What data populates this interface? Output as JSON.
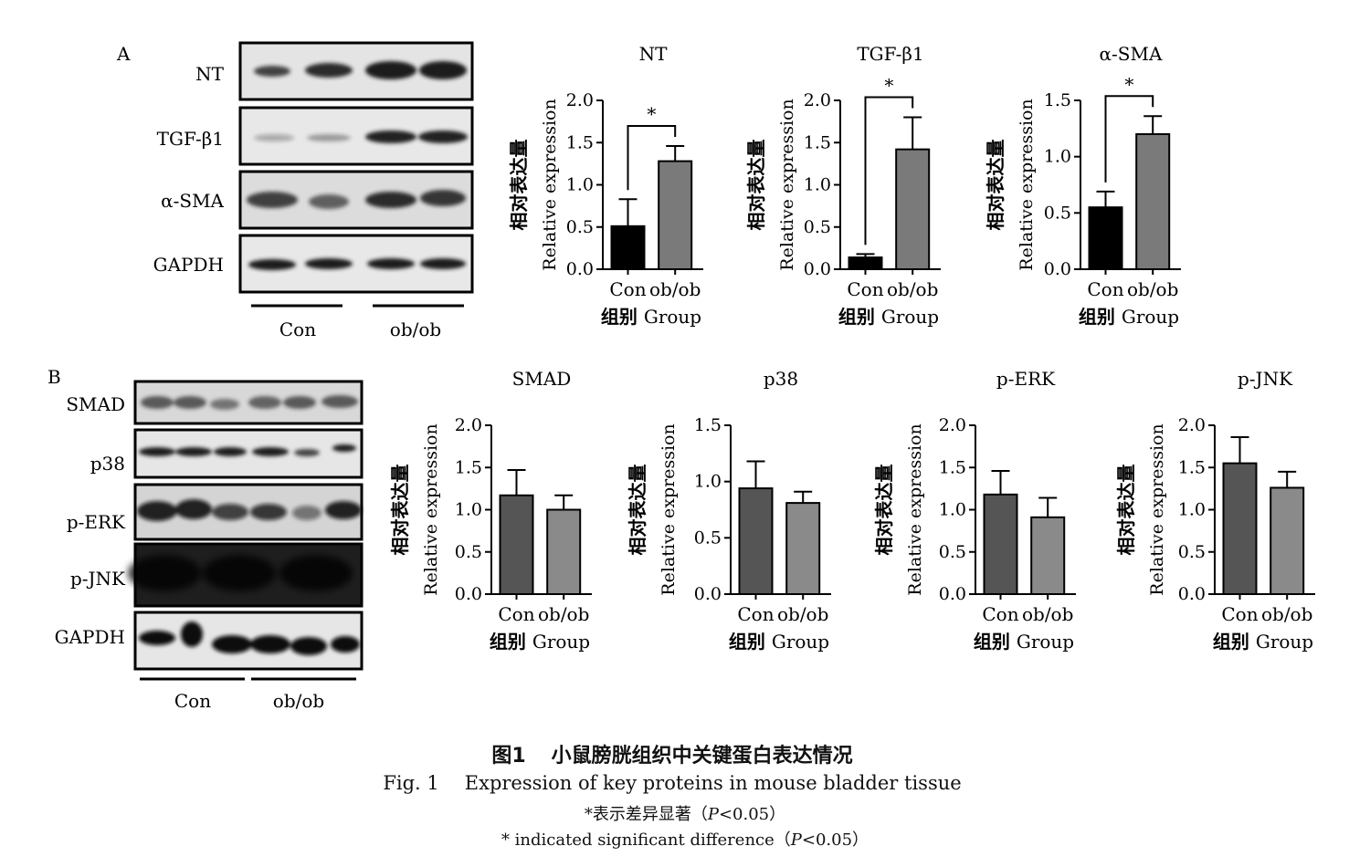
{
  "panelA": {
    "letter": "A",
    "blot_labels": [
      "NT",
      "TGF-β1",
      "α-SMA",
      "GAPDH"
    ],
    "group_labels": [
      "Con",
      "ob/ob"
    ]
  },
  "panelB": {
    "letter": "B",
    "blot_labels": [
      "SMAD",
      "p38",
      "p-ERK",
      "p-JNK",
      "GAPDH"
    ],
    "group_labels": [
      "Con",
      "ob/ob"
    ]
  },
  "colors": {
    "con_A": "#000000",
    "obob_A": "#7a7a7a",
    "con_B": "#555555",
    "obob_B": "#8a8a8a"
  },
  "chart_data": [
    {
      "type": "bar",
      "title": "NT",
      "ylabel_zh": "相对表达量",
      "ylabel": "Relative expression",
      "xlabel_zh": "组别",
      "xlabel": "Group",
      "categories": [
        "Con",
        "ob/ob"
      ],
      "values": [
        0.51,
        1.28
      ],
      "errors": [
        0.32,
        0.18
      ],
      "ylim": [
        0,
        2.0
      ],
      "yticks": [
        "0.0",
        "0.5",
        "1.0",
        "1.5",
        "2.0"
      ],
      "significance": "*"
    },
    {
      "type": "bar",
      "title": "TGF-β1",
      "ylabel_zh": "相对表达量",
      "ylabel": "Relative expression",
      "xlabel_zh": "组别",
      "xlabel": "Group",
      "categories": [
        "Con",
        "ob/ob"
      ],
      "values": [
        0.14,
        1.42
      ],
      "errors": [
        0.04,
        0.38
      ],
      "ylim": [
        0,
        2.0
      ],
      "yticks": [
        "0.0",
        "0.5",
        "1.0",
        "1.5",
        "2.0"
      ],
      "significance": "*"
    },
    {
      "type": "bar",
      "title": "α-SMA",
      "ylabel_zh": "相对表达量",
      "ylabel": "Relative expression",
      "xlabel_zh": "组别",
      "xlabel": "Group",
      "categories": [
        "Con",
        "ob/ob"
      ],
      "values": [
        0.55,
        1.2
      ],
      "errors": [
        0.14,
        0.16
      ],
      "ylim": [
        0,
        1.5
      ],
      "yticks": [
        "0.0",
        "0.5",
        "1.0",
        "1.5"
      ],
      "significance": "*"
    },
    {
      "type": "bar",
      "title": "SMAD",
      "ylabel_zh": "相对表达量",
      "ylabel": "Relative expression",
      "xlabel_zh": "组别",
      "xlabel": "Group",
      "categories": [
        "Con",
        "ob/ob"
      ],
      "values": [
        1.17,
        1.0
      ],
      "errors": [
        0.3,
        0.17
      ],
      "ylim": [
        0,
        2.0
      ],
      "yticks": [
        "0.0",
        "0.5",
        "1.0",
        "1.5",
        "2.0"
      ]
    },
    {
      "type": "bar",
      "title": "p38",
      "ylabel_zh": "相对表达量",
      "ylabel": "Relative expression",
      "xlabel_zh": "组别",
      "xlabel": "Group",
      "categories": [
        "Con",
        "ob/ob"
      ],
      "values": [
        0.94,
        0.81
      ],
      "errors": [
        0.24,
        0.1
      ],
      "ylim": [
        0,
        1.5
      ],
      "yticks": [
        "0.0",
        "0.5",
        "1.0",
        "1.5"
      ]
    },
    {
      "type": "bar",
      "title": "p-ERK",
      "ylabel_zh": "相对表达量",
      "ylabel": "Relative expression",
      "xlabel_zh": "组别",
      "xlabel": "Group",
      "categories": [
        "Con",
        "ob/ob"
      ],
      "values": [
        1.18,
        0.91
      ],
      "errors": [
        0.28,
        0.23
      ],
      "ylim": [
        0,
        2.0
      ],
      "yticks": [
        "0.0",
        "0.5",
        "1.0",
        "1.5",
        "2.0"
      ]
    },
    {
      "type": "bar",
      "title": "p-JNK",
      "ylabel_zh": "相对表达量",
      "ylabel": "Relative expression",
      "xlabel_zh": "组别",
      "xlabel": "Group",
      "categories": [
        "Con",
        "ob/ob"
      ],
      "values": [
        1.55,
        1.26
      ],
      "errors": [
        0.31,
        0.19
      ],
      "ylim": [
        0,
        2.0
      ],
      "yticks": [
        "0.0",
        "0.5",
        "1.0",
        "1.5",
        "2.0"
      ]
    }
  ],
  "caption": {
    "zh_label": "图1",
    "zh_text": "小鼠膀胱组织中关键蛋白表达情况",
    "en_label": "Fig. 1",
    "en_text": "Expression of key proteins in mouse bladder tissue",
    "note_zh_prefix": "*表示差异显著（",
    "note_zh_suffix": "<0.05）",
    "note_en_prefix": "* indicated significant difference（",
    "note_en_suffix": "<0.05）",
    "p_symbol": "P"
  }
}
